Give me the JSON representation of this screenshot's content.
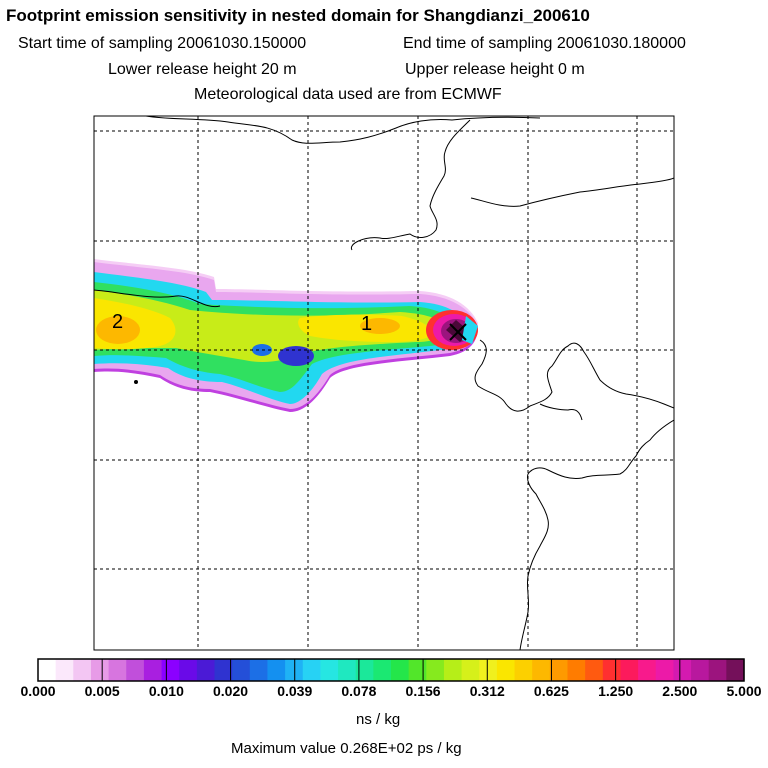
{
  "header": {
    "title": "Footprint emission sensitivity in nested domain for Shangdianzi_200610",
    "start_label": "Start time of sampling 20061030.150000",
    "end_label": "End time of sampling 20061030.180000",
    "lower_height": "Lower release height   20 m",
    "upper_height": "Upper release height    0 m",
    "met_data": "Meteorological data used are from ECMWF"
  },
  "map": {
    "labels": [
      "1",
      "2"
    ]
  },
  "colorbar": {
    "tick_labels": [
      "0.000",
      "0.005",
      "0.010",
      "0.020",
      "0.039",
      "0.078",
      "0.156",
      "0.312",
      "0.625",
      "1.250",
      "2.500",
      "5.000"
    ],
    "colors": [
      "#ffffff",
      "#fbe8fb",
      "#f3c6f3",
      "#e79be7",
      "#d775df",
      "#c14fdb",
      "#a91fe0",
      "#8b00ff",
      "#6a0ae8",
      "#4b1ad6",
      "#2f33d0",
      "#244fd8",
      "#1c6fe6",
      "#1490f0",
      "#1fb2f5",
      "#27d2f4",
      "#26e6e2",
      "#1fe8c0",
      "#1be89a",
      "#1be872",
      "#24e64a",
      "#52e62a",
      "#86ea1e",
      "#b6ee18",
      "#d6f01a",
      "#f0f01e",
      "#fae600",
      "#fcd000",
      "#fdb800",
      "#fe9a00",
      "#ff7c00",
      "#ff5a10",
      "#ff3030",
      "#fc1a5c",
      "#f81a8c",
      "#ec1aa8",
      "#d41ab0",
      "#b8189e",
      "#9c147e",
      "#74105a"
    ],
    "units": "ns / kg",
    "max_value": "Maximum value  0.268E+02 ps / kg"
  }
}
